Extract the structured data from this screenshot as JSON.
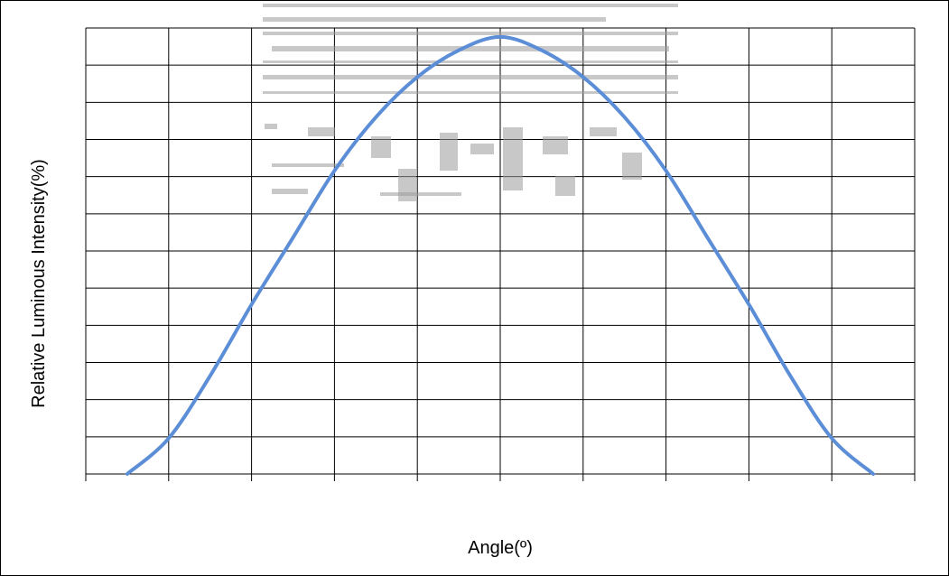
{
  "chart_data": {
    "type": "line",
    "title": "",
    "xlabel": "Angle(º)",
    "ylabel": "Relative Luminous Intensity(%)",
    "x_tick_labels": [],
    "y_tick_labels": [],
    "xlim": [
      -100,
      100
    ],
    "ylim": [
      0,
      100
    ],
    "grid": true,
    "series": [
      {
        "color": "#5b8ed6",
        "x": [
          -90,
          -80,
          -70,
          -60,
          -50,
          -40,
          -30,
          -20,
          -10,
          0,
          10,
          20,
          30,
          40,
          50,
          60,
          70,
          80,
          90
        ],
        "y": [
          0,
          8,
          22,
          38,
          53,
          68,
          80,
          89,
          95,
          98,
          95,
          89,
          80,
          68,
          53,
          38,
          22,
          8,
          0
        ]
      }
    ]
  }
}
